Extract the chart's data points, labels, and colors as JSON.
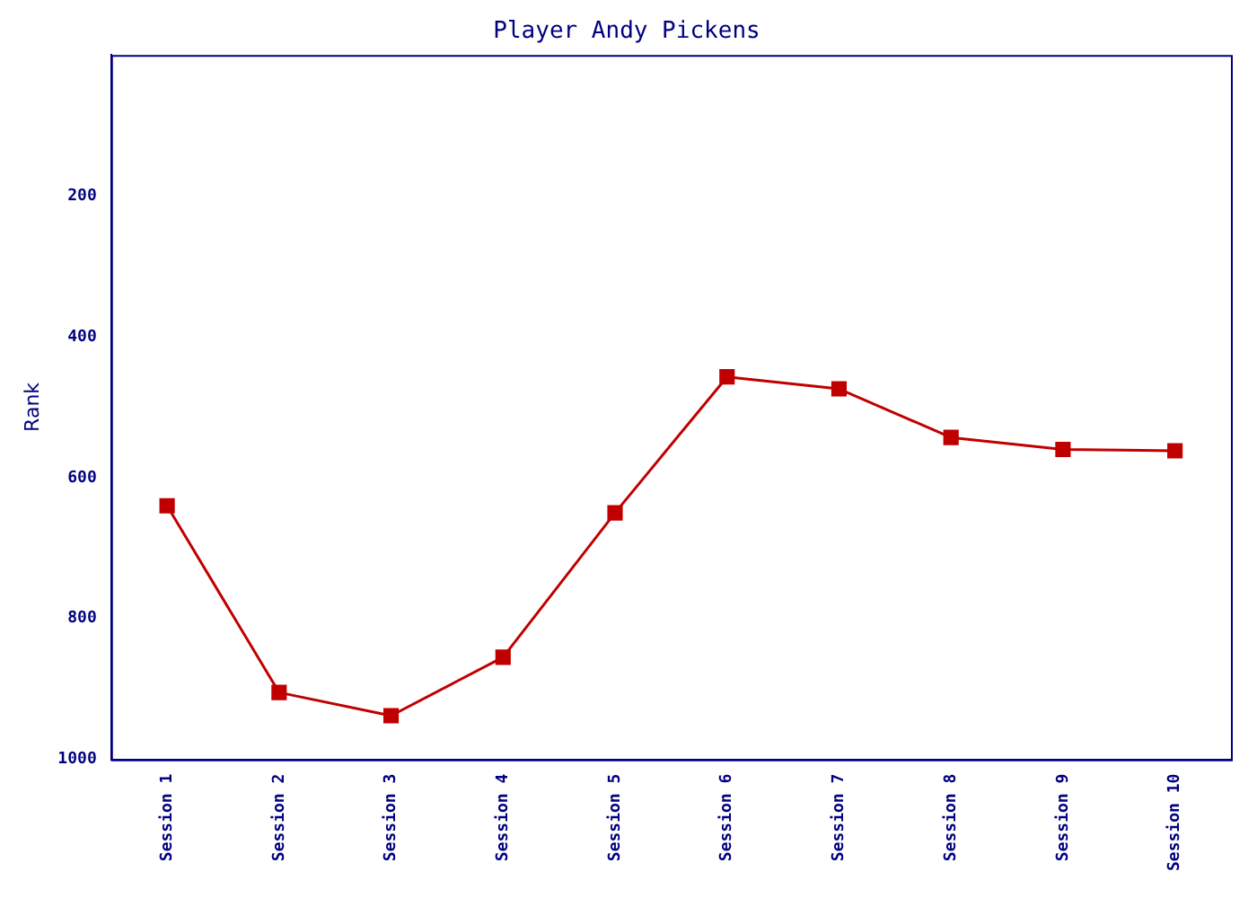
{
  "chart_data": {
    "type": "line",
    "title": "Player Andy Pickens",
    "ylabel": "Rank",
    "categories": [
      "Session 1",
      "Session 2",
      "Session 3",
      "Session 4",
      "Session 5",
      "Session 6",
      "Session 7",
      "Session 8",
      "Session 9",
      "Session 10"
    ],
    "series": [
      {
        "color": "#c00000",
        "values": [
          640,
          905,
          938,
          855,
          650,
          457,
          474,
          543,
          560,
          562
        ]
      }
    ],
    "ylim": [
      1000,
      0
    ],
    "yticks": [
      200,
      400,
      600,
      800,
      1000
    ],
    "marker": "square",
    "line_style": "solid",
    "grid": false,
    "legend": false
  }
}
